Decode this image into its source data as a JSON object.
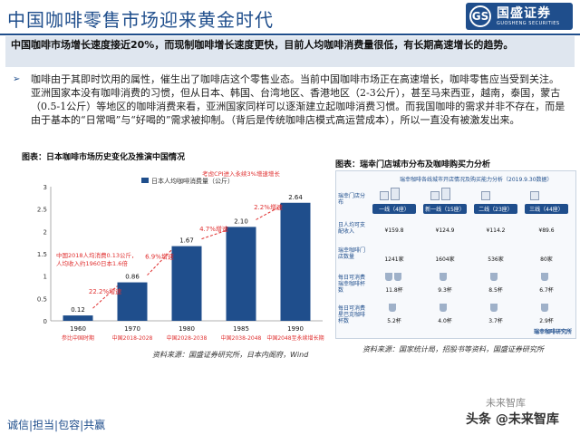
{
  "title": "中国咖啡零售市场迎来黄金时代",
  "logo": {
    "mark": "GS",
    "name": "国盛证券",
    "en": "GUOSHENG SECURITIES"
  },
  "summary": "中国咖啡市场增长速度接近20%，而现制咖啡增长速度更快，目前人均咖啡消费量很低，有长期高速增长的趋势。",
  "bullet": "咖啡由于其即时饮用的属性，催生出了咖啡店这个零售业态。当前中国咖啡市场正在高速增长，咖啡零售应当受到关注。亚洲国家本没有咖啡消费的习惯，但从日本、韩国、台湾地区、香港地区（2-3公斤），甚至马来西亚，越南，泰国，蒙古（0.5-1公斤）等地区的咖啡消费来看，亚洲国家同样可以逐渐建立起咖啡消费习惯。而我国咖啡的需求并非不存在，而是由于基本的“日常喝”与“好喝的”需求被抑制。（背后是传统咖啡店模式高运营成本），所以一直没有被激发出来。",
  "caption_left": "图表：日本咖啡市场历史变化及推演中国情况",
  "caption_right": "图表：瑞幸门店城市分布及咖啡购买力分析",
  "source_left": "资料来源：国盛证券研究所，日本内阁府，Wind",
  "source_right": "资料来源：国家统计局，招股书等资料，国盛证券研究所",
  "footer": "诚信|担当|包容|共赢",
  "watermark_top": "未来智库",
  "watermark_bottom": "头条 @未来智库",
  "colors": {
    "primary": "#1f4e8c",
    "bar": "#1f4e8c",
    "growth": "#e03030",
    "summary_bg": "#dfe6ef"
  },
  "chart_data": {
    "type": "bar",
    "legend": "日本人均咖啡消费量（公斤）",
    "categories": [
      "1960",
      "1970",
      "1980",
      "1985",
      "1990"
    ],
    "values": [
      0.12,
      0.86,
      1.67,
      2.1,
      2.64
    ],
    "value_labels": [
      "0.12",
      "0.86",
      "1.67",
      "2.10",
      "2.64"
    ],
    "ylim": [
      0,
      3.0
    ],
    "yticks": [
      "0",
      "0.5",
      "1",
      "1.5",
      "2",
      "2.5",
      "3"
    ],
    "grid": false,
    "growth_labels": [
      "22.2%增速",
      "6.9%增速",
      "4.7%增速",
      "2.2%增速"
    ],
    "sub_x_labels": [
      "参比中国时期",
      "中国2018-2028",
      "中国2028-2038",
      "中国2038-2048",
      "中国2048至永续增长期"
    ],
    "annotations": [
      "中国2018人均消费0.13公斤，人均收入约1960日本1.6倍",
      "考虑CPI进入永续3%增速增长"
    ]
  },
  "infographic": {
    "title": "瑞幸咖啡各线城市开店情况及购买能力分析（2019.9.30数据）",
    "row_labels": [
      "瑞幸门店分布",
      "日人均可支配收入",
      "瑞幸咖啡门店数量",
      "每日可消费瑞幸咖啡杯数",
      "每日可消费星巴克咖啡杯数"
    ],
    "tiers": [
      "一线（4座）",
      "新一线（15座）",
      "二线（23座）",
      "三线（44座）"
    ],
    "income": [
      "¥159.8",
      "¥124.9",
      "¥114.2",
      "¥89.6"
    ],
    "stores": [
      "1241家",
      "1604家",
      "536家",
      "80家"
    ],
    "luckin_cups": [
      "11.8杯",
      "9.3杯",
      "8.5杯",
      "6.7杯"
    ],
    "starbucks_cups": [
      "5.2杯",
      "4.0杯",
      "3.7杯",
      "2.9杯"
    ],
    "logo": "瑞幸咖啡研究所"
  }
}
